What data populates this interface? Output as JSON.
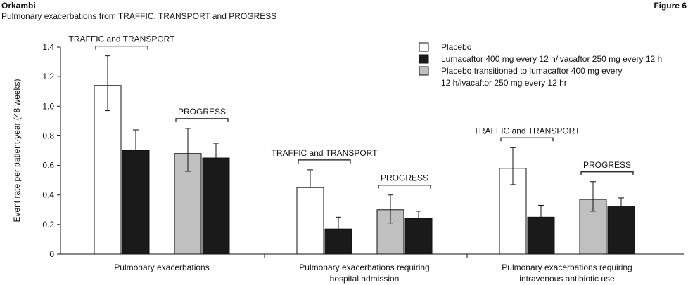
{
  "header": {
    "brand": "Orkambi",
    "subtitle": "Pulmonary exacerbations from TRAFFIC, TRANSPORT and PROGRESS",
    "figure_label": "Figure 6"
  },
  "colors": {
    "placebo": "#ffffff",
    "lumacaftor": "#1a1a1a",
    "transitioned": "#c0c0c0",
    "stroke": "#111111"
  },
  "chart_data": {
    "type": "bar",
    "ylabel": "Event rate per patient-year (48 weeks)",
    "ylim": [
      0,
      1.4
    ],
    "yticks": [
      "0",
      "0.2",
      "0.4",
      "0.6",
      "0.8",
      "1.0",
      "1.2",
      "1.4"
    ],
    "ytick_values": [
      0,
      0.2,
      0.4,
      0.6,
      0.8,
      1.0,
      1.2,
      1.4
    ],
    "categories": [
      [
        "Pulmonary exacerbations"
      ],
      [
        "Pulmonary exacerbations requiring",
        "hospital admission"
      ],
      [
        "Pulmonary exacerbations requiring",
        "intravenous antibiotic use"
      ]
    ],
    "study_labels": [
      "TRAFFIC and TRANSPORT",
      "PROGRESS"
    ],
    "legend": {
      "position": "top-right",
      "entries": [
        {
          "label": [
            "Placebo"
          ],
          "color_key": "placebo"
        },
        {
          "label": [
            "Lumacaftor 400 mg every 12 h/ivacaftor 250 mg every 12 h"
          ],
          "color_key": "lumacaftor"
        },
        {
          "label": [
            "Placebo transitioned to lumacaftor 400 mg every",
            "12 h/ivacaftor 250 mg every 12 hr"
          ],
          "color_key": "transitioned"
        }
      ]
    },
    "groups": [
      {
        "category_index": 0,
        "bars": [
          {
            "study": 0,
            "color_key": "placebo",
            "value": 1.14,
            "error": [
              0.97,
              1.34
            ]
          },
          {
            "study": 0,
            "color_key": "lumacaftor",
            "value": 0.7,
            "error": [
              0.7,
              0.84
            ]
          },
          {
            "study": 1,
            "color_key": "transitioned",
            "value": 0.68,
            "error": [
              0.56,
              0.85
            ]
          },
          {
            "study": 1,
            "color_key": "lumacaftor",
            "value": 0.65,
            "error": [
              0.65,
              0.75
            ]
          }
        ]
      },
      {
        "category_index": 1,
        "bars": [
          {
            "study": 0,
            "color_key": "placebo",
            "value": 0.45,
            "error": [
              0.45,
              0.57
            ]
          },
          {
            "study": 0,
            "color_key": "lumacaftor",
            "value": 0.17,
            "error": [
              0.17,
              0.25
            ]
          },
          {
            "study": 1,
            "color_key": "transitioned",
            "value": 0.3,
            "error": [
              0.21,
              0.4
            ]
          },
          {
            "study": 1,
            "color_key": "lumacaftor",
            "value": 0.24,
            "error": [
              0.24,
              0.29
            ]
          }
        ]
      },
      {
        "category_index": 2,
        "bars": [
          {
            "study": 0,
            "color_key": "placebo",
            "value": 0.58,
            "error": [
              0.47,
              0.72
            ]
          },
          {
            "study": 0,
            "color_key": "lumacaftor",
            "value": 0.25,
            "error": [
              0.25,
              0.33
            ]
          },
          {
            "study": 1,
            "color_key": "transitioned",
            "value": 0.37,
            "error": [
              0.29,
              0.49
            ]
          },
          {
            "study": 1,
            "color_key": "lumacaftor",
            "value": 0.32,
            "error": [
              0.32,
              0.38
            ]
          }
        ]
      }
    ]
  }
}
